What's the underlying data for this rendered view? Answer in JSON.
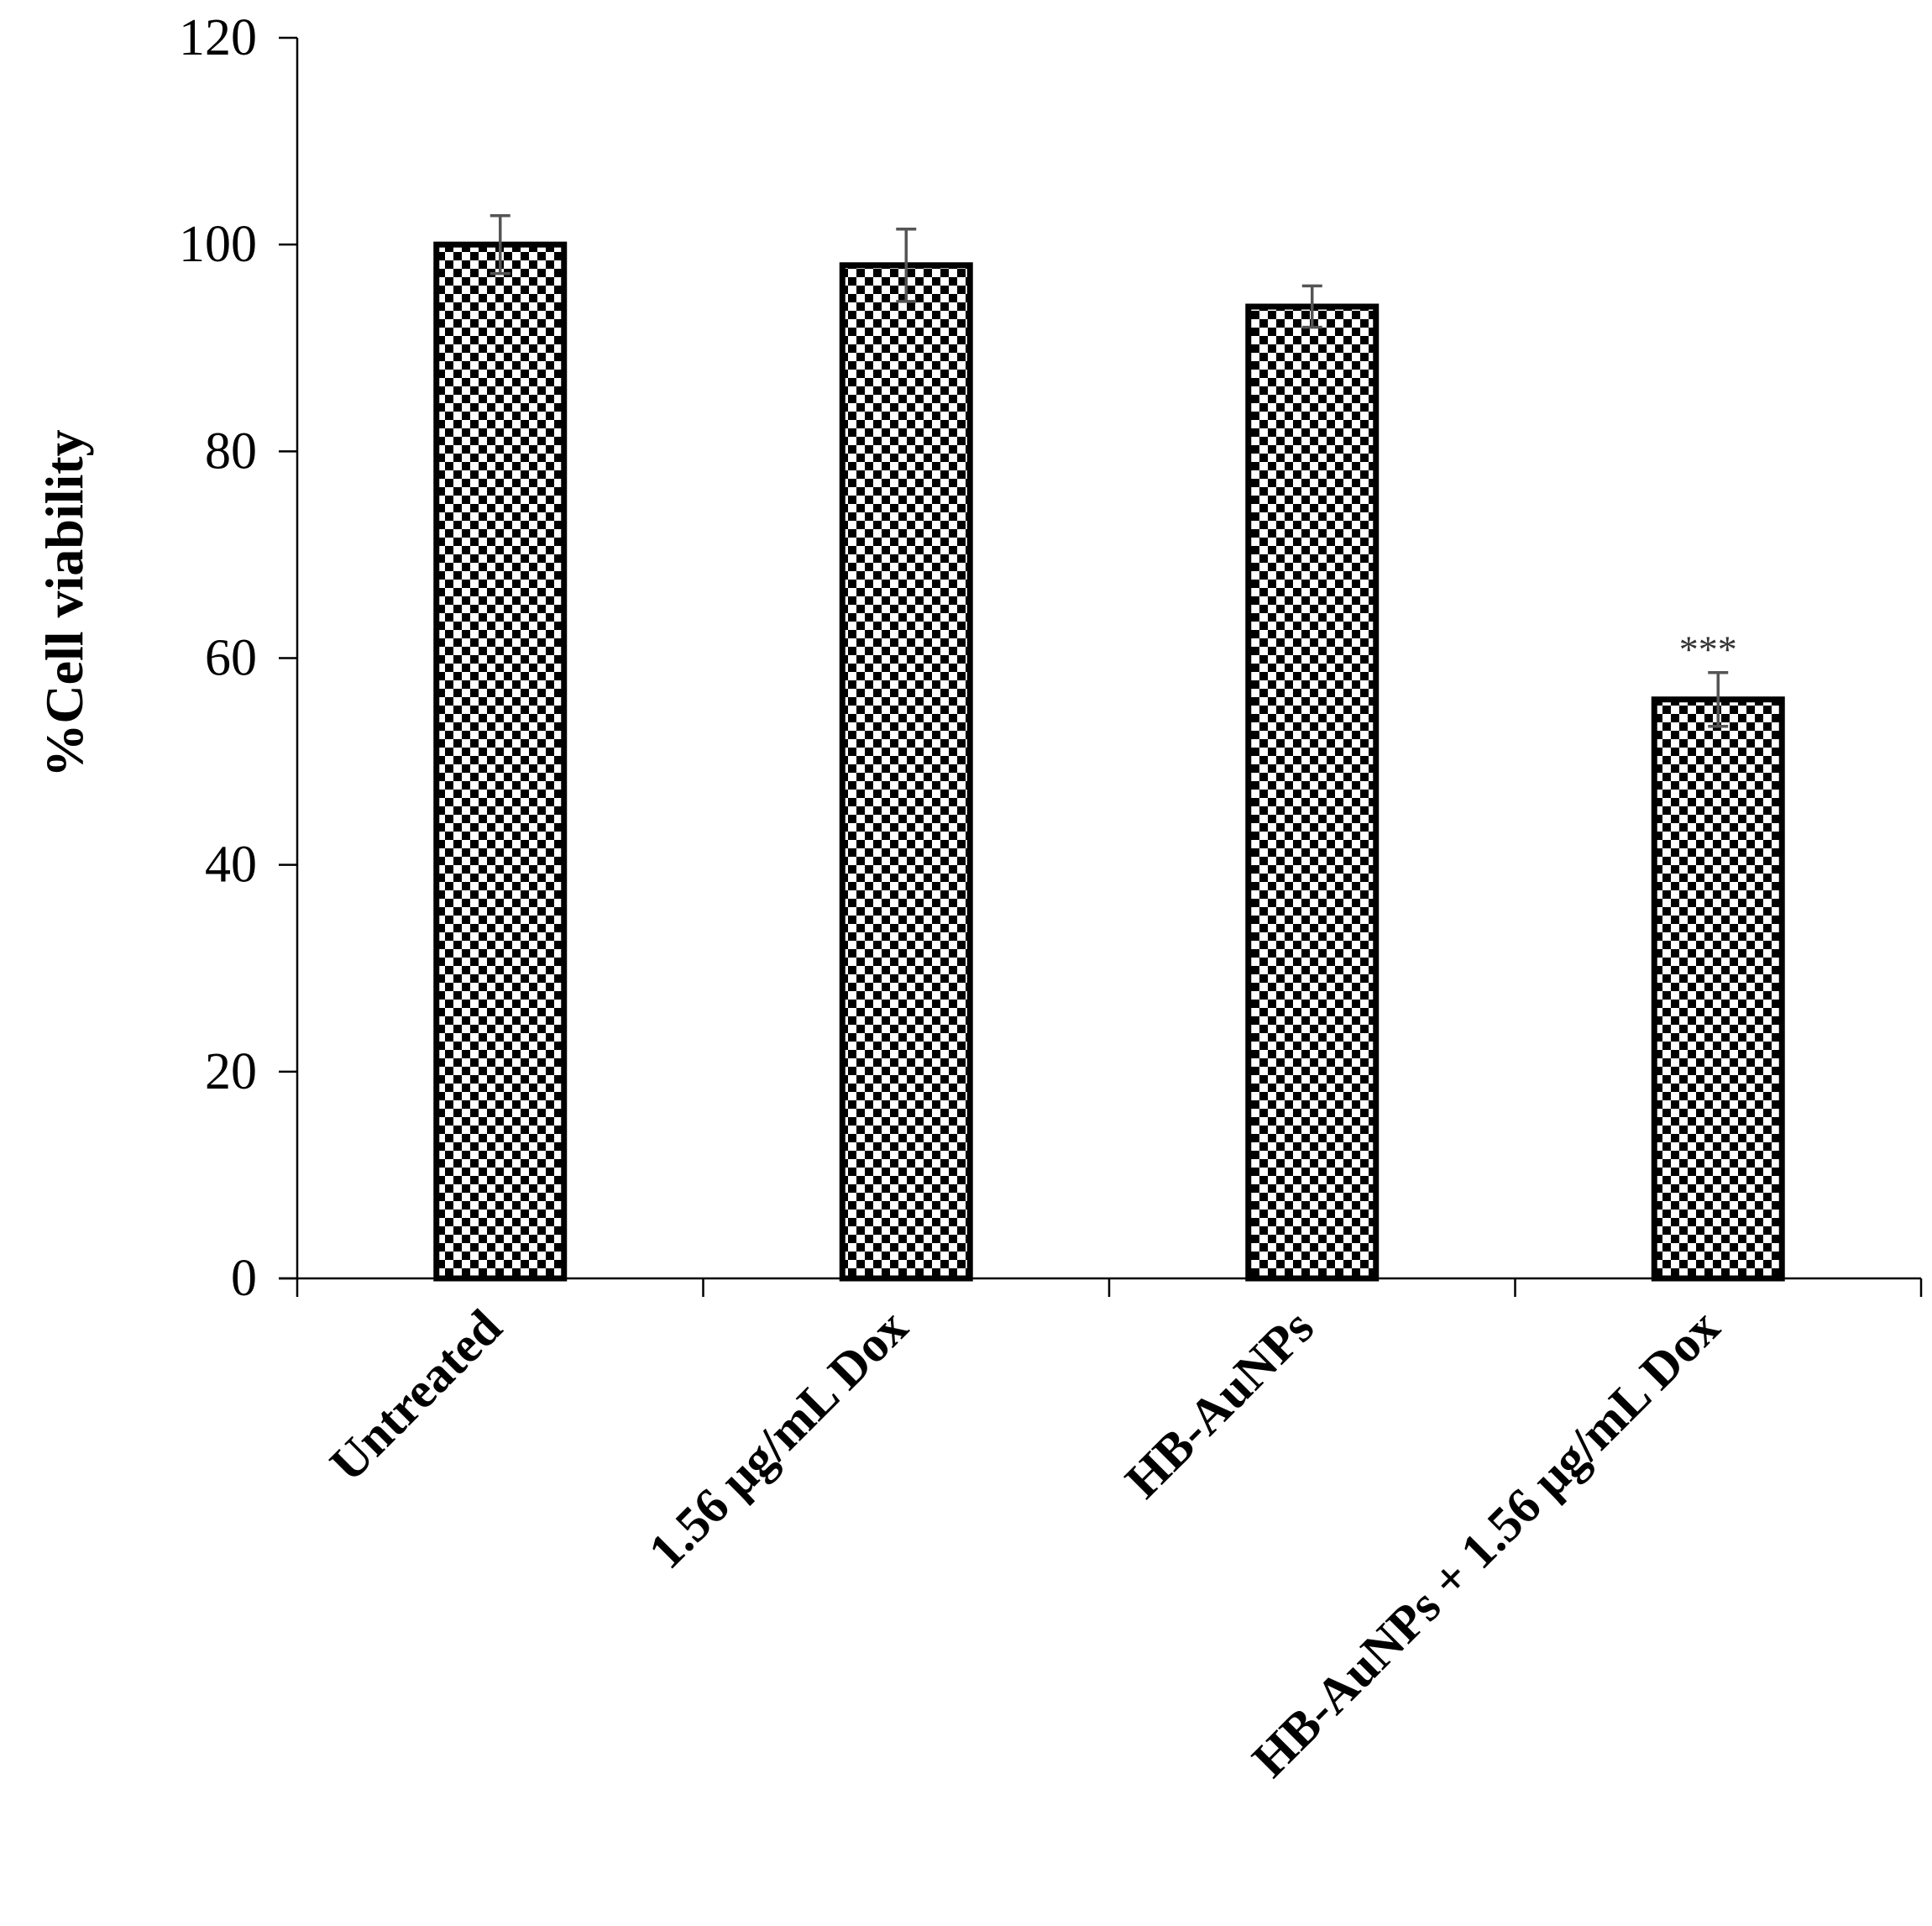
{
  "chart_data": {
    "type": "bar",
    "categories": [
      "Untreated",
      "1.56 μg/mL Dox",
      "HB-AuNPs",
      "HB-AuNPs + 1.56 μg/mL Dox"
    ],
    "values": [
      100,
      98,
      94,
      56
    ],
    "errors": [
      2.8,
      3.5,
      2.0,
      2.6
    ],
    "annotations": [
      "",
      "",
      "",
      "***"
    ],
    "ylabel": "%Cell viability",
    "xlabel": "",
    "ylim": [
      0,
      120
    ],
    "yticks": [
      "0",
      "20",
      "40",
      "60",
      "80",
      "100",
      "120"
    ],
    "grid": false,
    "legend": "none",
    "fill_pattern": "black-white checkerboard",
    "colors": {
      "bar_stroke": "#000000",
      "error_bar": "#555555",
      "axis": "#000000"
    }
  }
}
